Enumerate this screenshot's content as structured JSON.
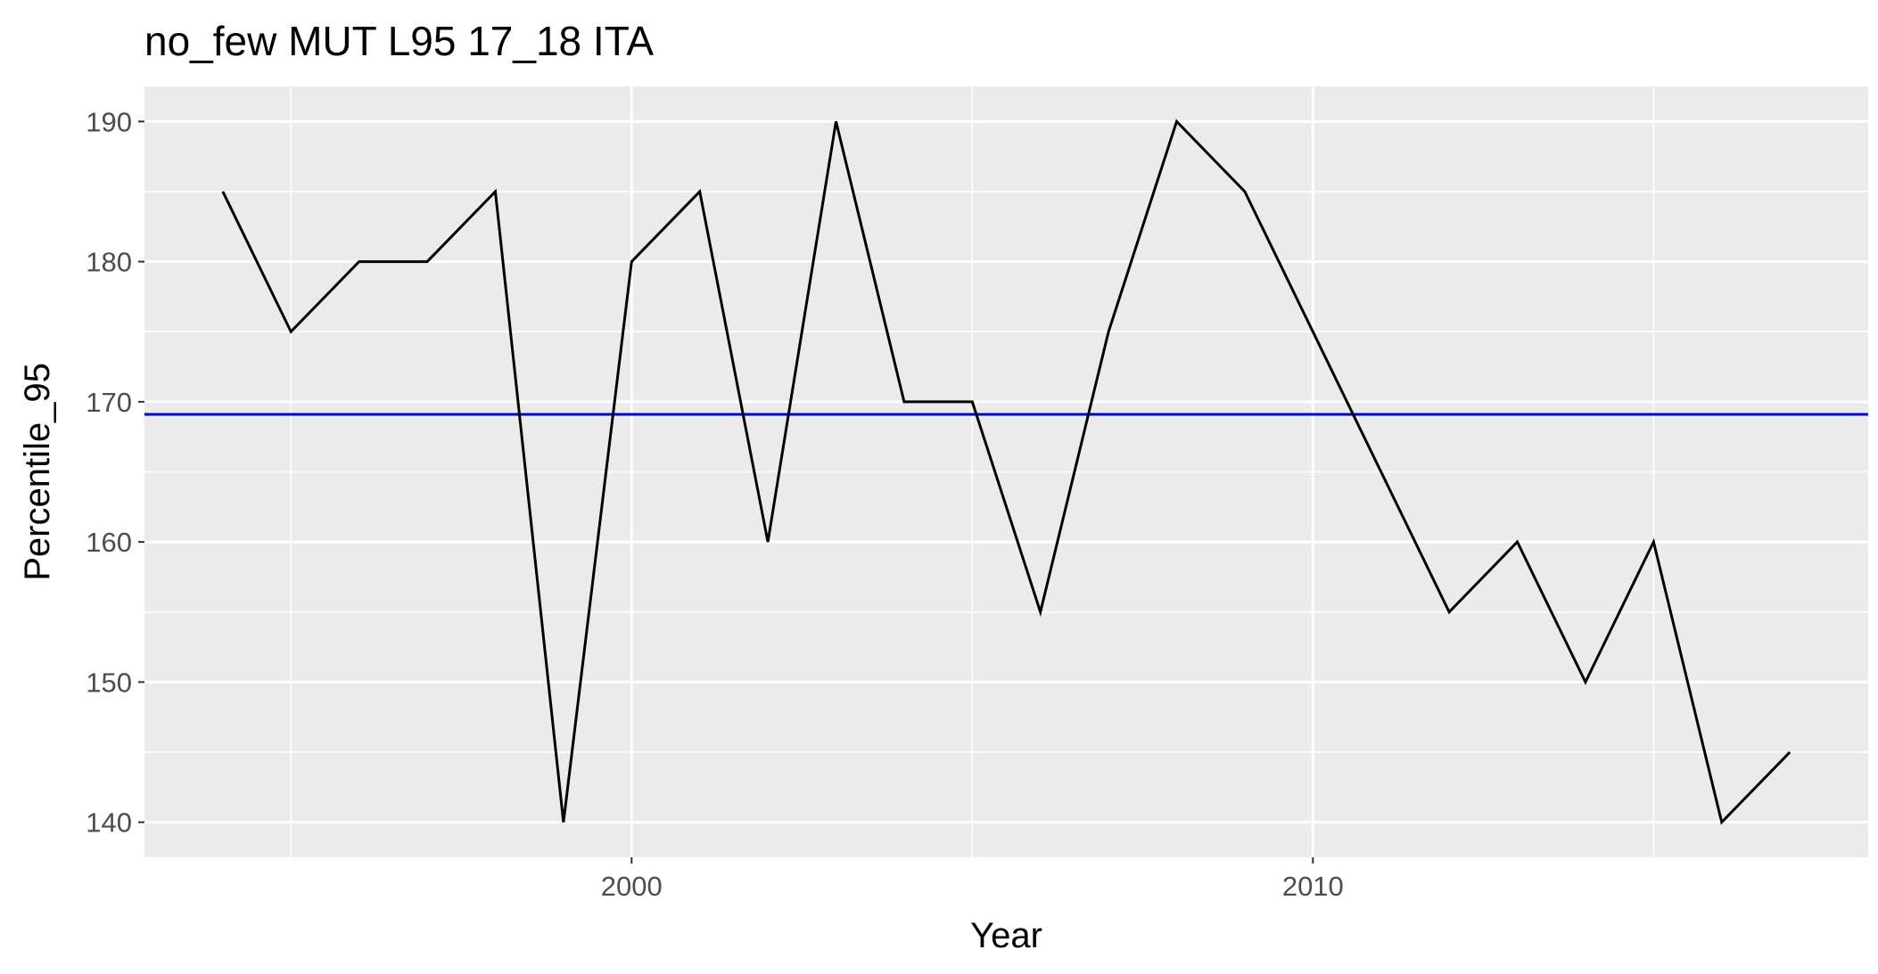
{
  "chart_data": {
    "type": "line",
    "title": "no_few MUT L95 17_18 ITA",
    "xlabel": "Year",
    "ylabel": "Percentile_95",
    "xlim": [
      1992.85,
      2018.15
    ],
    "ylim": [
      137.5,
      192.5
    ],
    "x_ticks": [
      2000,
      2010
    ],
    "x_tick_labels": [
      "2000",
      "2010"
    ],
    "x_minor_ticks": [
      1995,
      2005,
      2015
    ],
    "y_ticks": [
      140,
      150,
      160,
      170,
      180,
      190
    ],
    "y_tick_labels": [
      "140",
      "150",
      "160",
      "170",
      "180",
      "190"
    ],
    "grid": true,
    "legend": "none",
    "series": [
      {
        "color": "#000000",
        "x": [
          1994,
          1995,
          1996,
          1997,
          1998,
          1999,
          2000,
          2001,
          2002,
          2003,
          2004,
          2005,
          2006,
          2007,
          2008,
          2009,
          2010,
          2011,
          2012,
          2013,
          2014,
          2015,
          2016,
          2017
        ],
        "values": [
          185,
          175,
          180,
          180,
          185,
          140,
          180,
          185,
          160,
          190,
          170,
          170,
          155,
          175,
          190,
          185,
          175,
          165,
          155,
          160,
          150,
          160,
          140,
          145
        ]
      }
    ],
    "hline": {
      "y": 169.1,
      "color": "#0000cd"
    },
    "panel_color": "#ebebeb",
    "grid_color": "#ffffff"
  }
}
